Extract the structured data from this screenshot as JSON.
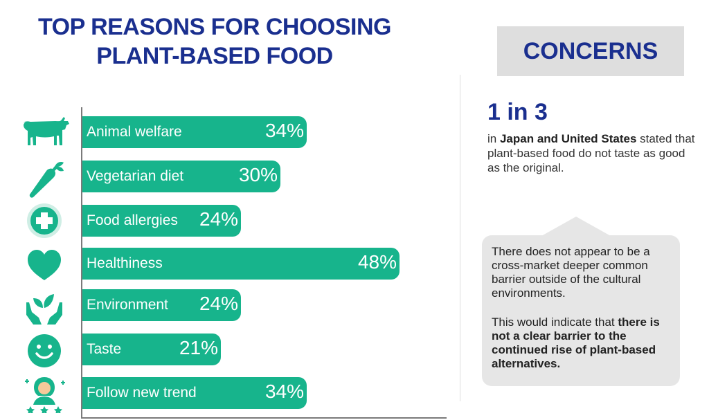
{
  "title_lines": [
    "TOP REASONS FOR CHOOSING",
    "PLANT-BASED FOOD"
  ],
  "chart_data": {
    "type": "bar",
    "orientation": "horizontal",
    "title": "TOP REASONS FOR CHOOSING PLANT-BASED FOOD",
    "categories": [
      "Animal welfare",
      "Vegetarian diet",
      "Food allergies",
      "Healthiness",
      "Environment",
      "Taste",
      "Follow new trend"
    ],
    "values": [
      34,
      30,
      24,
      48,
      24,
      21,
      34
    ],
    "value_labels": [
      "34%",
      "30%",
      "24%",
      "48%",
      "24%",
      "21%",
      "34%"
    ],
    "icons": [
      "cow-icon",
      "carrot-icon",
      "medical-cross-icon",
      "heart-icon",
      "hands-plant-icon",
      "smiley-icon",
      "person-stars-icon"
    ],
    "xlim": [
      0,
      48
    ],
    "bar_color": "#17b48c"
  },
  "concerns": {
    "heading": "CONCERNS",
    "stat": "1 in 3",
    "stat_prefix": "in ",
    "stat_bold": "Japan and United States",
    "stat_rest": " stated that plant-based food do not taste as good as the original.",
    "bubble_p1": "There does not appear to be a cross-market deeper common barrier outside of the cultural environments.",
    "bubble_p2_prefix": "This would indicate that ",
    "bubble_p2_bold": "there is not a clear barrier to the continued rise of plant-based alternatives."
  },
  "colors": {
    "title": "#1a2f8f",
    "bar": "#17b48c",
    "panel": "#dedede",
    "bubble": "#e6e6e6"
  }
}
